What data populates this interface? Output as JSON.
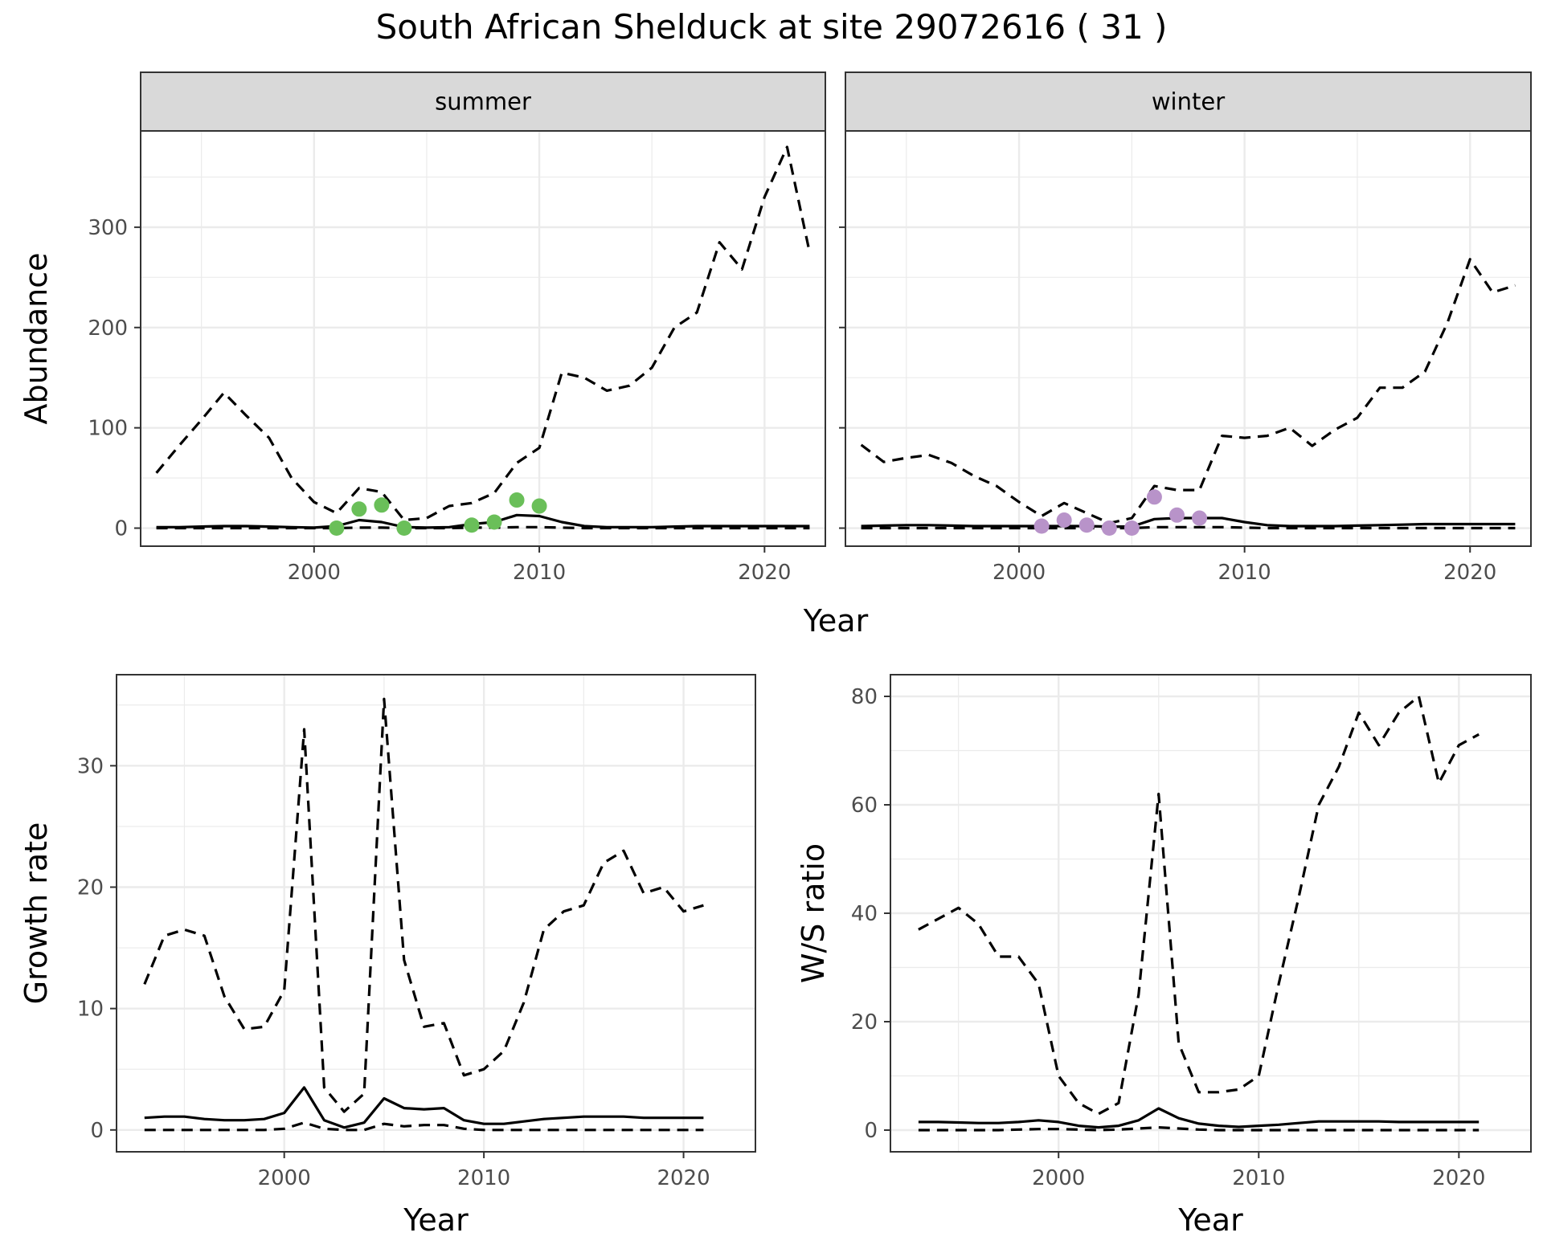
{
  "title": "South African Shelduck at site 29072616 ( 31 )",
  "colors": {
    "summer_points": "#6abf59",
    "winter_points": "#b893c9",
    "line": "#000000",
    "strip": "#d9d9d9",
    "grid": "#ebebeb"
  },
  "chart_data": [
    {
      "type": "line",
      "panel": "summer",
      "strip_label": "summer",
      "xlabel": "Year",
      "ylabel": "Abundance",
      "xlim": [
        1992.3,
        2022.7
      ],
      "ylim": [
        -18,
        396
      ],
      "x_ticks": [
        2000,
        2010,
        2020
      ],
      "y_ticks": [
        0,
        100,
        200,
        300
      ],
      "grid": true,
      "x": [
        1993,
        1994,
        1995,
        1996,
        1997,
        1998,
        1999,
        2000,
        2001,
        2002,
        2003,
        2004,
        2005,
        2006,
        2007,
        2008,
        2009,
        2010,
        2011,
        2012,
        2013,
        2014,
        2015,
        2016,
        2017,
        2018,
        2019,
        2020,
        2021,
        2022
      ],
      "series": [
        {
          "style": "solid",
          "values": [
            1,
            1,
            1.5,
            2,
            2,
            1.5,
            1,
            0.5,
            2,
            8,
            6,
            1,
            0.5,
            1,
            4,
            6,
            13,
            12,
            6,
            2,
            1,
            1,
            1,
            1.5,
            2,
            2,
            2,
            2,
            2,
            2
          ]
        },
        {
          "style": "dashed",
          "values": [
            55,
            82,
            108,
            135,
            112,
            90,
            50,
            26,
            15,
            40,
            36,
            8,
            10,
            22,
            25,
            35,
            65,
            80,
            155,
            150,
            137,
            142,
            160,
            200,
            215,
            285,
            258,
            330,
            380,
            275
          ]
        },
        {
          "style": "dashed",
          "values": [
            0,
            0,
            0,
            0,
            0,
            0,
            0,
            0,
            0,
            0.5,
            0.5,
            0,
            0,
            0,
            0.5,
            0.5,
            1,
            1,
            0.5,
            0,
            0,
            0,
            0,
            0,
            0,
            0,
            0,
            0,
            0,
            0
          ]
        }
      ],
      "points": {
        "x": [
          2001,
          2002,
          2003,
          2004,
          2007,
          2008,
          2009,
          2010
        ],
        "y": [
          0,
          19,
          23,
          0,
          3,
          6,
          28,
          22
        ]
      }
    },
    {
      "type": "line",
      "panel": "winter",
      "strip_label": "winter",
      "xlabel": "Year",
      "xlim": [
        1992.3,
        2022.7
      ],
      "ylim": [
        -18,
        396
      ],
      "x_ticks": [
        2000,
        2010,
        2020
      ],
      "grid": true,
      "x": [
        1993,
        1994,
        1995,
        1996,
        1997,
        1998,
        1999,
        2000,
        2001,
        2002,
        2003,
        2004,
        2005,
        2006,
        2007,
        2008,
        2009,
        2010,
        2011,
        2012,
        2013,
        2014,
        2015,
        2016,
        2017,
        2018,
        2019,
        2020,
        2021,
        2022
      ],
      "series": [
        {
          "style": "solid",
          "values": [
            2,
            2.5,
            3,
            3,
            2.5,
            2,
            2,
            2,
            2,
            2,
            2,
            1.5,
            1.5,
            9,
            10,
            10,
            10,
            6,
            3,
            2,
            2,
            2,
            2.5,
            3,
            3.5,
            4,
            4,
            4,
            4,
            4
          ]
        },
        {
          "style": "dashed",
          "values": [
            83,
            66,
            70,
            73,
            65,
            52,
            42,
            26,
            12,
            25,
            15,
            5,
            10,
            42,
            38,
            38,
            92,
            90,
            92,
            100,
            82,
            98,
            110,
            140,
            140,
            156,
            205,
            268,
            235,
            242
          ]
        },
        {
          "style": "dashed",
          "values": [
            0,
            0,
            0,
            0,
            0,
            0,
            0,
            0,
            0,
            0,
            0,
            0,
            0,
            1,
            1,
            1,
            1,
            0.5,
            0,
            0,
            0,
            0,
            0,
            0,
            0,
            0,
            0,
            0,
            0,
            0
          ]
        }
      ],
      "points": {
        "x": [
          2001,
          2002,
          2003,
          2004,
          2005,
          2006,
          2007,
          2008
        ],
        "y": [
          2,
          8,
          3,
          0,
          0,
          31,
          13,
          10
        ]
      }
    },
    {
      "type": "line",
      "panel": "growth",
      "xlabel": "Year",
      "ylabel": "Growth rate",
      "xlim": [
        1991.6,
        2023.6
      ],
      "ylim": [
        -1.8,
        37.5
      ],
      "x_ticks": [
        2000,
        2010,
        2020
      ],
      "y_ticks": [
        0,
        10,
        20,
        30
      ],
      "grid": true,
      "x": [
        1993,
        1994,
        1995,
        1996,
        1997,
        1998,
        1999,
        2000,
        2001,
        2002,
        2003,
        2004,
        2005,
        2006,
        2007,
        2008,
        2009,
        2010,
        2011,
        2012,
        2013,
        2014,
        2015,
        2016,
        2017,
        2018,
        2019,
        2020,
        2021
      ],
      "series": [
        {
          "style": "solid",
          "values": [
            1,
            1.1,
            1.1,
            0.9,
            0.8,
            0.8,
            0.9,
            1.4,
            3.5,
            0.8,
            0.2,
            0.6,
            2.6,
            1.8,
            1.7,
            1.8,
            0.8,
            0.5,
            0.5,
            0.7,
            0.9,
            1,
            1.1,
            1.1,
            1.1,
            1,
            1,
            1,
            1
          ]
        },
        {
          "style": "dashed",
          "values": [
            12,
            16,
            16.5,
            16,
            11,
            8.3,
            8.5,
            11.5,
            33,
            3.5,
            1.5,
            3,
            35.5,
            14,
            8.5,
            8.8,
            4.5,
            5,
            6.5,
            10.5,
            16.5,
            18,
            18.5,
            22,
            23,
            19.5,
            20,
            18,
            18.5
          ]
        },
        {
          "style": "dashed",
          "values": [
            0,
            0,
            0,
            0,
            0,
            0,
            0,
            0.1,
            0.6,
            0.1,
            0,
            0,
            0.5,
            0.3,
            0.4,
            0.4,
            0.1,
            0,
            0,
            0,
            0,
            0,
            0,
            0,
            0,
            0,
            0,
            0,
            0
          ]
        }
      ]
    },
    {
      "type": "line",
      "panel": "ws_ratio",
      "xlabel": "Year",
      "ylabel": "W/S ratio",
      "xlim": [
        1991.6,
        2023.6
      ],
      "ylim": [
        -4,
        84
      ],
      "x_ticks": [
        2000,
        2010,
        2020
      ],
      "y_ticks": [
        0,
        20,
        40,
        60,
        80
      ],
      "grid": true,
      "x": [
        1993,
        1994,
        1995,
        1996,
        1997,
        1998,
        1999,
        2000,
        2001,
        2002,
        2003,
        2004,
        2005,
        2006,
        2007,
        2008,
        2009,
        2010,
        2011,
        2012,
        2013,
        2014,
        2015,
        2016,
        2017,
        2018,
        2019,
        2020,
        2021
      ],
      "series": [
        {
          "style": "solid",
          "values": [
            1.5,
            1.5,
            1.4,
            1.3,
            1.3,
            1.5,
            1.8,
            1.5,
            0.8,
            0.5,
            0.8,
            1.8,
            4,
            2.2,
            1.2,
            0.8,
            0.6,
            0.8,
            1,
            1.3,
            1.6,
            1.6,
            1.6,
            1.6,
            1.5,
            1.5,
            1.5,
            1.5,
            1.5
          ]
        },
        {
          "style": "dashed",
          "values": [
            37,
            39,
            41,
            38,
            32,
            32,
            27,
            10,
            5,
            3,
            5,
            25,
            62,
            16,
            7,
            7,
            7.5,
            10,
            27,
            43,
            60,
            67,
            77,
            71,
            77,
            80,
            64,
            71,
            73
          ]
        },
        {
          "style": "dashed",
          "values": [
            0,
            0,
            0,
            0,
            0,
            0.1,
            0.2,
            0.2,
            0.1,
            0,
            0.1,
            0.3,
            0.5,
            0.3,
            0.1,
            0,
            0,
            0,
            0,
            0,
            0,
            0,
            0,
            0,
            0,
            0,
            0,
            0,
            0
          ]
        }
      ]
    }
  ]
}
